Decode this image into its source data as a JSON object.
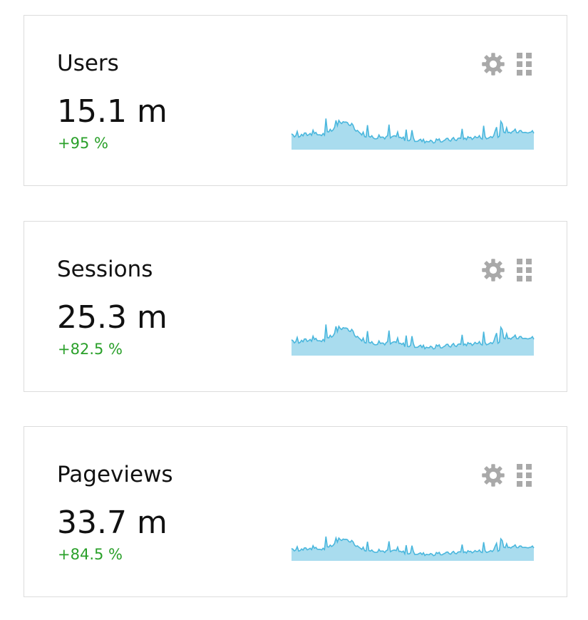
{
  "colors": {
    "border": "#dcdcdc",
    "text": "#111111",
    "positive": "#2aa02a",
    "icon": "#a9a9a9",
    "sparkline_fill": "#a9dcee",
    "sparkline_stroke": "#4ab7dd"
  },
  "widgets": [
    {
      "title": "Users",
      "value": "15.1 m",
      "change": "+95 %",
      "settings_icon": "gear-icon",
      "drag_icon": "drag-handle-icon"
    },
    {
      "title": "Sessions",
      "value": "25.3 m",
      "change": "+82.5 %",
      "settings_icon": "gear-icon",
      "drag_icon": "drag-handle-icon"
    },
    {
      "title": "Pageviews",
      "value": "33.7 m",
      "change": "+84.5 %",
      "settings_icon": "gear-icon",
      "drag_icon": "drag-handle-icon"
    }
  ]
}
